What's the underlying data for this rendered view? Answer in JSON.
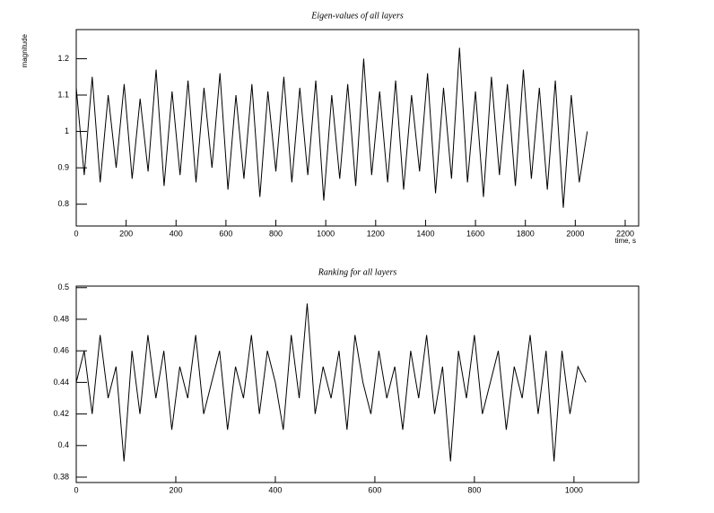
{
  "chart_data": [
    {
      "type": "line",
      "title": "Eigen-values of all layers",
      "xlabel": "time, s",
      "ylabel": "magnitude",
      "color": "#000000",
      "x": [
        0,
        32,
        64,
        96,
        128,
        160,
        192,
        224,
        256,
        288,
        320,
        352,
        384,
        416,
        448,
        480,
        512,
        544,
        576,
        608,
        640,
        672,
        704,
        736,
        768,
        800,
        832,
        864,
        896,
        928,
        960,
        992,
        1024,
        1056,
        1088,
        1120,
        1152,
        1184,
        1216,
        1248,
        1280,
        1312,
        1344,
        1376,
        1408,
        1440,
        1472,
        1504,
        1536,
        1568,
        1600,
        1632,
        1664,
        1696,
        1728,
        1760,
        1792,
        1824,
        1856,
        1888,
        1920,
        1952,
        1984,
        2016,
        2048
      ],
      "values": [
        1.12,
        0.88,
        1.15,
        0.86,
        1.1,
        0.9,
        1.13,
        0.87,
        1.09,
        0.89,
        1.17,
        0.85,
        1.11,
        0.88,
        1.14,
        0.86,
        1.12,
        0.9,
        1.16,
        0.84,
        1.1,
        0.87,
        1.13,
        0.82,
        1.11,
        0.89,
        1.15,
        0.86,
        1.12,
        0.88,
        1.14,
        0.81,
        1.1,
        0.87,
        1.13,
        0.85,
        1.2,
        0.88,
        1.11,
        0.86,
        1.14,
        0.84,
        1.1,
        0.89,
        1.16,
        0.83,
        1.12,
        0.87,
        1.23,
        0.86,
        1.11,
        0.82,
        1.15,
        0.88,
        1.13,
        0.85,
        1.17,
        0.87,
        1.12,
        0.84,
        1.14,
        0.79,
        1.1,
        0.86,
        1.0
      ],
      "xlim": [
        0,
        2254
      ],
      "xticks": [
        0,
        200,
        400,
        600,
        800,
        1000,
        1200,
        1400,
        1600,
        1800,
        2000,
        2200
      ],
      "ylim": [
        0.74,
        1.28
      ],
      "yticks": [
        0.8,
        0.9,
        1,
        1.1,
        1.2
      ]
    },
    {
      "type": "line",
      "title": "Ranking for all layers",
      "color": "#000000",
      "x": [
        0,
        16,
        32,
        48,
        64,
        80,
        96,
        112,
        128,
        144,
        160,
        176,
        192,
        208,
        224,
        240,
        256,
        272,
        288,
        304,
        320,
        336,
        352,
        368,
        384,
        400,
        416,
        432,
        448,
        464,
        480,
        496,
        512,
        528,
        544,
        560,
        576,
        592,
        608,
        624,
        640,
        656,
        672,
        688,
        704,
        720,
        736,
        752,
        768,
        784,
        800,
        816,
        832,
        848,
        864,
        880,
        896,
        912,
        928,
        944,
        960,
        976,
        992,
        1008,
        1024
      ],
      "values": [
        0.44,
        0.46,
        0.42,
        0.47,
        0.43,
        0.45,
        0.39,
        0.46,
        0.42,
        0.47,
        0.43,
        0.46,
        0.41,
        0.45,
        0.43,
        0.47,
        0.42,
        0.44,
        0.46,
        0.41,
        0.45,
        0.43,
        0.47,
        0.42,
        0.46,
        0.44,
        0.41,
        0.47,
        0.43,
        0.49,
        0.42,
        0.45,
        0.43,
        0.46,
        0.41,
        0.47,
        0.44,
        0.42,
        0.46,
        0.43,
        0.45,
        0.41,
        0.46,
        0.43,
        0.47,
        0.42,
        0.45,
        0.39,
        0.46,
        0.43,
        0.47,
        0.42,
        0.44,
        0.46,
        0.41,
        0.45,
        0.43,
        0.47,
        0.42,
        0.46,
        0.39,
        0.46,
        0.42,
        0.45,
        0.44
      ],
      "xlim": [
        0,
        1130
      ],
      "xticks": [
        0,
        200,
        400,
        600,
        800,
        1000
      ],
      "ylim": [
        0.3766,
        0.501
      ],
      "yticks": [
        0.38,
        0.4,
        0.42,
        0.44,
        0.46,
        0.48,
        0.5
      ]
    }
  ]
}
